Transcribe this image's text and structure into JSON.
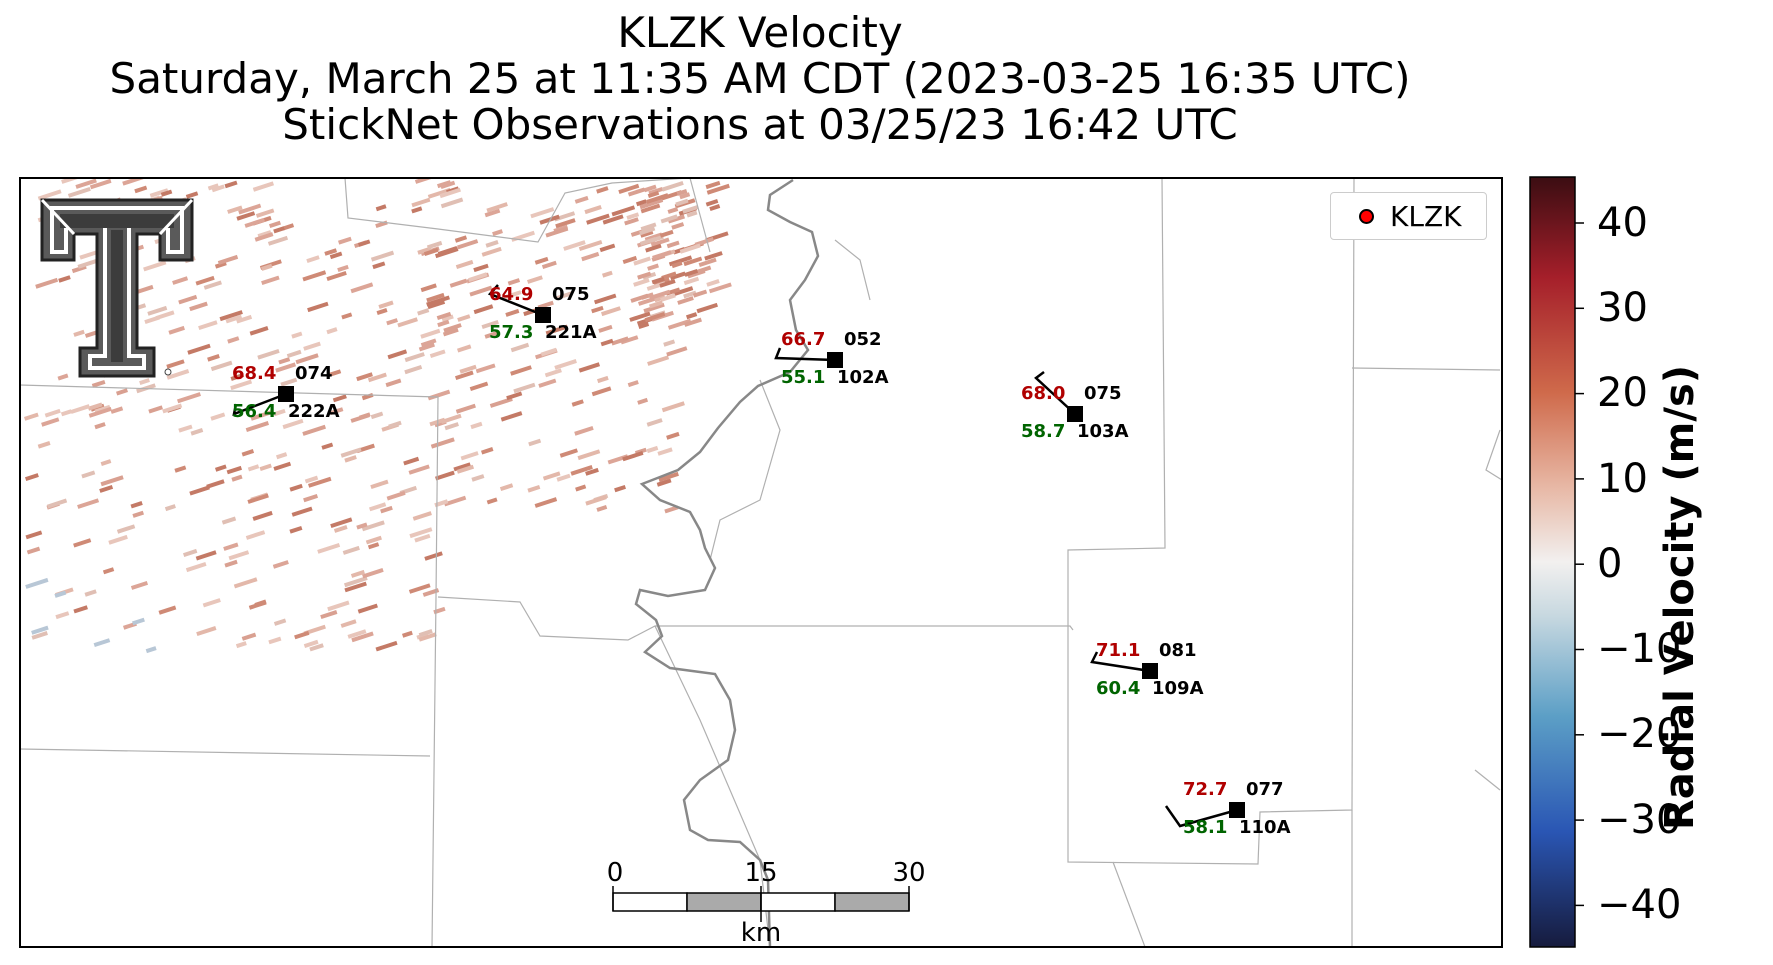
{
  "title": {
    "line1": "KLZK Velocity",
    "line2": "Saturday, March 25 at 11:35 AM CDT (2023-03-25 16:35 UTC)",
    "line3": "StickNet Observations at 03/25/23 16:42 UTC"
  },
  "legend": {
    "label": "KLZK",
    "marker_color": "#ff0000"
  },
  "colorbar": {
    "label": "Radial Velocity (m/s)",
    "ticks": [
      "40",
      "30",
      "20",
      "10",
      "0",
      "−10",
      "−20",
      "−30",
      "−40"
    ],
    "range": [
      -45,
      45
    ],
    "colors": [
      "#161b3d",
      "#2a56b4",
      "#5c9fc6",
      "#c7d8e0",
      "#f2f0ef",
      "#e7b6a3",
      "#cf6a4b",
      "#a51f2a",
      "#3b0d12"
    ]
  },
  "scalebar": {
    "ticks": [
      "0",
      "15",
      "30"
    ],
    "unit": "km"
  },
  "stations": [
    {
      "id": "222A",
      "temp": "68.4",
      "dew": "56.4",
      "pressure": "074"
    },
    {
      "id": "221A",
      "temp": "64.9",
      "dew": "57.3",
      "pressure": "075"
    },
    {
      "id": "102A",
      "temp": "66.7",
      "dew": "55.1",
      "pressure": "052"
    },
    {
      "id": "103A",
      "temp": "68.0",
      "dew": "58.7",
      "pressure": "075"
    },
    {
      "id": "109A",
      "temp": "71.1",
      "dew": "60.4",
      "pressure": "081"
    },
    {
      "id": "110A",
      "temp": "72.7",
      "dew": "58.1",
      "pressure": "077"
    }
  ],
  "colors": {
    "temp": "#b00000",
    "dew": "#006400",
    "station_text": "#000000",
    "river": "#888888",
    "county": "#b0b0b0"
  },
  "logo": {
    "name": "texas-tech-double-t-logo"
  }
}
